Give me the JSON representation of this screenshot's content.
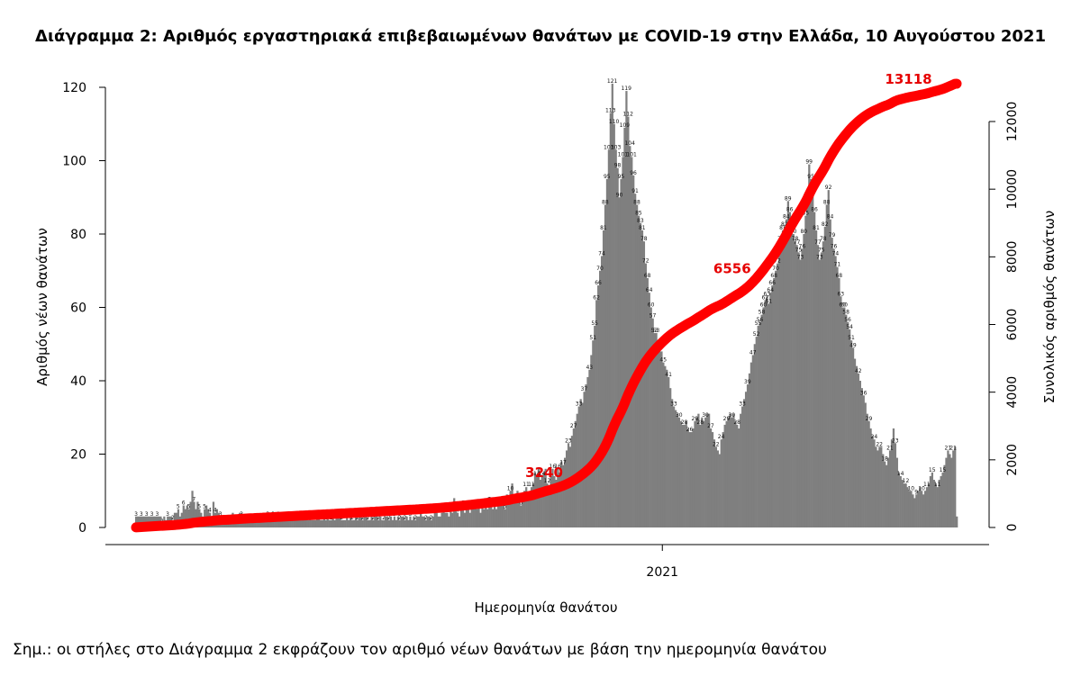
{
  "title": "Διάγραμμα 2: Αριθμός εργαστηριακά επιβεβαιωμένων θανάτων με COVID-19 στην Ελλάδα, 10 Αυγούστου 2021",
  "note": "Σημ.: οι στήλες στο Διάγραμμα 2 εκφράζουν τον αριθμό νέων θανάτων με βάση την ημερομηνία θανάτου",
  "chart_data": {
    "type": "bar",
    "title": "Διάγραμμα 2: Αριθμός εργαστηριακά επιβεβαιωμένων θανάτων με COVID-19 στην Ελλάδα, 10 Αυγούστου 2021",
    "xlabel": "Ημερομηνία θανάτου",
    "ylabel": "Αριθμός νέων θανάτων",
    "y2label": "Συνολικός αριθμός θανάτων",
    "x_tick_label": "2021",
    "x_tick_day_index": 300,
    "ylim": [
      0,
      125
    ],
    "yticks": [
      0,
      20,
      40,
      60,
      80,
      100,
      120
    ],
    "y2lim": [
      0,
      13500
    ],
    "y2ticks": [
      0,
      2000,
      4000,
      6000,
      8000,
      10000,
      12000
    ],
    "series": [
      {
        "name": "",
        "type": "bar",
        "color": "#7f7f7f",
        "values": [
          3,
          3,
          3,
          3,
          3,
          3,
          3,
          3,
          3,
          3,
          3,
          3,
          3,
          3,
          3,
          1,
          3,
          2,
          3,
          3,
          3,
          2,
          4,
          4,
          5,
          3,
          4,
          6,
          5,
          6,
          5,
          7,
          10,
          7,
          5,
          7,
          5,
          4,
          3,
          5,
          6,
          5,
          4,
          3,
          7,
          4,
          5,
          4,
          3,
          3,
          2,
          2,
          3,
          3,
          2,
          4,
          3,
          2,
          3,
          4,
          3,
          2,
          3,
          2,
          3,
          3,
          2,
          2,
          3,
          2,
          2,
          3,
          2,
          3,
          2,
          3,
          2,
          2,
          3,
          2,
          3,
          3,
          2,
          3,
          3,
          2,
          3,
          2,
          2,
          3,
          2,
          3,
          3,
          2,
          3,
          2,
          3,
          2,
          2,
          3,
          2,
          2,
          2,
          3,
          3,
          2,
          2,
          3,
          2,
          3,
          2,
          2,
          3,
          2,
          3,
          4,
          3,
          2,
          2,
          2,
          3,
          2,
          3,
          2,
          2,
          3,
          2,
          3,
          3,
          2,
          3,
          3,
          2,
          2,
          3,
          2,
          3,
          4,
          2,
          3,
          2,
          2,
          3,
          3,
          2,
          3,
          2,
          3,
          2,
          3,
          2,
          3,
          3,
          2,
          3,
          2,
          3,
          2,
          3,
          2,
          3,
          3,
          4,
          3,
          3,
          2,
          3,
          3,
          2,
          3,
          4,
          4,
          3,
          3,
          4,
          5,
          4,
          4,
          3,
          5,
          4,
          8,
          5,
          4,
          3,
          5,
          6,
          4,
          5,
          6,
          4,
          6,
          5,
          6,
          5,
          6,
          4,
          6,
          5,
          6,
          5,
          7,
          6,
          5,
          6,
          5,
          7,
          6,
          6,
          8,
          5,
          9,
          7,
          10,
          12,
          9,
          7,
          10,
          8,
          6,
          9,
          10,
          11,
          9,
          8,
          11,
          12,
          15,
          14,
          16,
          13,
          14,
          15,
          16,
          12,
          11,
          14,
          16,
          14,
          13,
          16,
          15,
          18,
          17,
          19,
          21,
          23,
          22,
          25,
          27,
          29,
          31,
          33,
          35,
          34,
          37,
          39,
          41,
          43,
          47,
          51,
          55,
          62,
          66,
          70,
          74,
          81,
          88,
          95,
          103,
          113,
          121,
          110,
          103,
          98,
          90,
          95,
          101,
          109,
          119,
          112,
          104,
          101,
          96,
          91,
          88,
          85,
          83,
          81,
          78,
          72,
          68,
          64,
          60,
          57,
          53,
          53,
          49,
          48,
          48,
          45,
          44,
          43,
          41,
          38,
          35,
          33,
          32,
          31,
          30,
          29,
          28,
          28,
          29,
          27,
          26,
          26,
          27,
          29,
          30,
          31,
          28,
          30,
          29,
          30,
          31,
          31,
          27,
          26,
          24,
          22,
          21,
          20,
          24,
          26,
          28,
          29,
          30,
          31,
          30,
          31,
          29,
          28,
          27,
          31,
          33,
          35,
          37,
          39,
          42,
          45,
          47,
          50,
          52,
          55,
          56,
          58,
          60,
          62,
          63,
          61,
          64,
          66,
          68,
          70,
          72,
          76,
          78,
          81,
          82,
          84,
          89,
          86,
          83,
          80,
          78,
          77,
          75,
          73,
          76,
          80,
          85,
          90,
          99,
          95,
          91,
          86,
          81,
          77,
          73,
          75,
          78,
          82,
          88,
          92,
          84,
          79,
          76,
          74,
          71,
          68,
          63,
          60,
          60,
          58,
          56,
          54,
          51,
          49,
          46,
          44,
          42,
          40,
          38,
          36,
          34,
          31,
          29,
          27,
          25,
          24,
          22,
          21,
          22,
          22,
          20,
          18,
          17,
          19,
          21,
          24,
          27,
          23,
          19,
          15,
          14,
          13,
          12,
          12,
          11,
          10,
          10,
          9,
          8,
          9,
          10,
          11,
          10,
          9,
          10,
          11,
          12,
          14,
          15,
          13,
          12,
          11,
          13,
          14,
          15,
          17,
          19,
          21,
          20,
          19,
          21,
          22,
          3
        ]
      },
      {
        "name": "",
        "type": "line",
        "axis": "right",
        "color": "#ff0000"
      }
    ],
    "cumulative_labels": [
      {
        "text": "3240",
        "day_index": 245
      },
      {
        "text": "6556",
        "day_index": 352
      },
      {
        "text": "13118",
        "day_index": 455
      }
    ]
  }
}
